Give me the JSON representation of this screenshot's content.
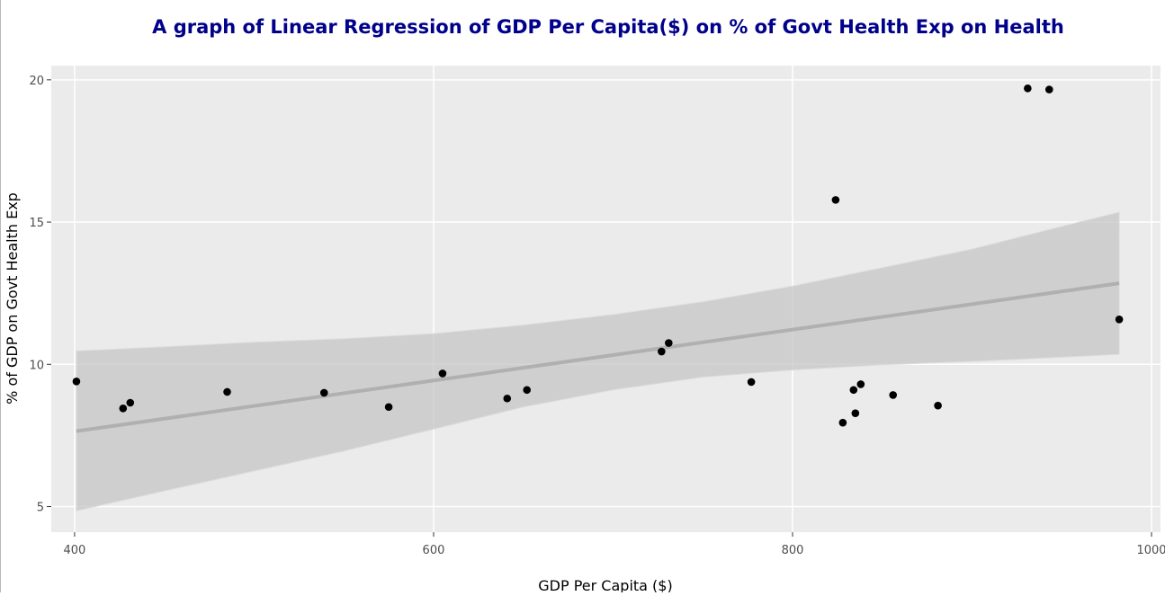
{
  "chart_data": {
    "type": "scatter",
    "title": "A graph of Linear Regression of GDP Per Capita($) on % of Govt Health Exp on Health",
    "xlabel": "GDP Per Capita ($)",
    "ylabel": "% of GDP on Govt Health Exp",
    "xlim": [
      387,
      1005
    ],
    "ylim": [
      4.1,
      20.5
    ],
    "x_ticks": [
      400,
      600,
      800,
      1000
    ],
    "y_ticks": [
      5,
      10,
      15,
      20
    ],
    "grid": true,
    "legend": "none",
    "points": [
      {
        "x": 401,
        "y": 9.4
      },
      {
        "x": 427,
        "y": 8.45
      },
      {
        "x": 431,
        "y": 8.65
      },
      {
        "x": 485,
        "y": 9.03
      },
      {
        "x": 539,
        "y": 9.0
      },
      {
        "x": 575,
        "y": 8.5
      },
      {
        "x": 605,
        "y": 9.68
      },
      {
        "x": 641,
        "y": 8.8
      },
      {
        "x": 652,
        "y": 9.1
      },
      {
        "x": 727,
        "y": 10.45
      },
      {
        "x": 731,
        "y": 10.75
      },
      {
        "x": 777,
        "y": 9.38
      },
      {
        "x": 824,
        "y": 15.78
      },
      {
        "x": 828,
        "y": 7.95
      },
      {
        "x": 834,
        "y": 9.1
      },
      {
        "x": 835,
        "y": 8.28
      },
      {
        "x": 838,
        "y": 9.3
      },
      {
        "x": 856,
        "y": 8.92
      },
      {
        "x": 881,
        "y": 8.55
      },
      {
        "x": 931,
        "y": 19.7
      },
      {
        "x": 943,
        "y": 19.66
      },
      {
        "x": 982,
        "y": 11.58
      }
    ],
    "regression": {
      "x": [
        401,
        982
      ],
      "y": [
        7.65,
        12.85
      ]
    },
    "confidence_band": {
      "x": [
        401,
        450,
        500,
        550,
        600,
        650,
        700,
        750,
        800,
        850,
        900,
        950,
        982
      ],
      "upper": [
        10.47,
        10.62,
        10.78,
        10.9,
        11.08,
        11.38,
        11.75,
        12.2,
        12.75,
        13.4,
        14.05,
        14.85,
        15.35
      ],
      "lower": [
        4.85,
        5.55,
        6.25,
        6.95,
        7.72,
        8.5,
        9.1,
        9.55,
        9.8,
        9.98,
        10.1,
        10.25,
        10.35
      ]
    },
    "colors": {
      "title": "#00008b",
      "panel": "#ebebeb",
      "grid": "#ffffff",
      "points": "#000000",
      "band": "#c6c6c6",
      "line": "#b0b0b0"
    }
  }
}
